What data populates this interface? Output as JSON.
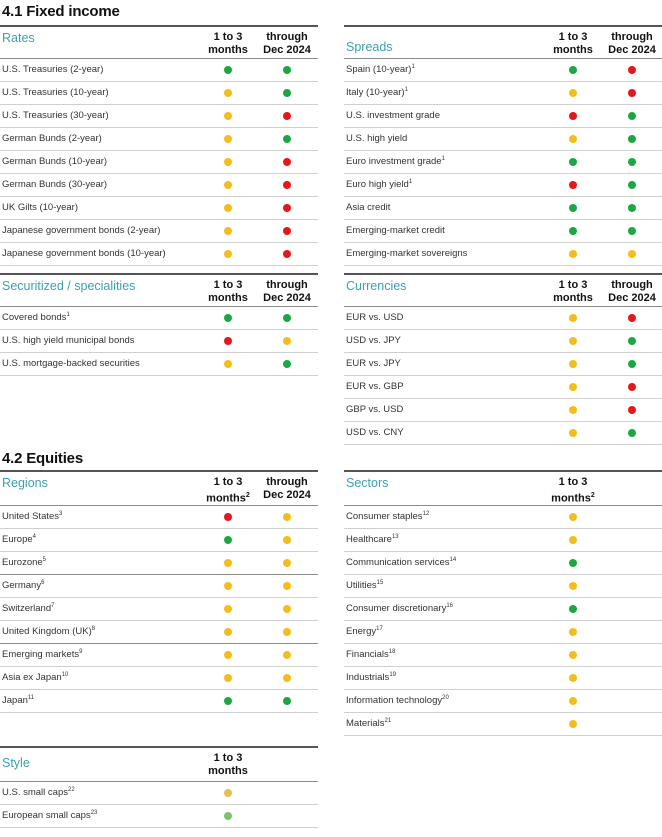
{
  "colors": {
    "green": "#1aa843",
    "yellow": "#f4bc1c",
    "red": "#e6161b",
    "accent": "#3aa1b2",
    "muted_yellow": "#e3c050",
    "muted_green": "#7bc46a"
  },
  "headers": {
    "h1": "1 to 3",
    "h1b": "months",
    "h2": "through",
    "h2b": "Dec 2024",
    "sup2": "2"
  },
  "sections": {
    "fixed_income": "4.1 Fixed income",
    "equities": "4.2 Equities"
  },
  "rates": {
    "title": "Rates",
    "rows": [
      {
        "label": "U.S. Treasuries (2-year)",
        "sup": "",
        "c1": "green",
        "c2": "green"
      },
      {
        "label": "U.S. Treasuries (10-year)",
        "sup": "",
        "c1": "yellow",
        "c2": "green"
      },
      {
        "label": "U.S. Treasuries (30-year)",
        "sup": "",
        "c1": "yellow",
        "c2": "red"
      },
      {
        "label": "German Bunds (2-year)",
        "sup": "",
        "c1": "yellow",
        "c2": "green"
      },
      {
        "label": "German Bunds (10-year)",
        "sup": "",
        "c1": "yellow",
        "c2": "red"
      },
      {
        "label": "German Bunds (30-year)",
        "sup": "",
        "c1": "yellow",
        "c2": "red"
      },
      {
        "label": "UK Gilts (10-year)",
        "sup": "",
        "c1": "yellow",
        "c2": "red"
      },
      {
        "label": "Japanese government bonds (2-year)",
        "sup": "",
        "c1": "yellow",
        "c2": "red"
      },
      {
        "label": "Japanese government bonds (10-year)",
        "sup": "",
        "c1": "yellow",
        "c2": "red"
      }
    ]
  },
  "spreads": {
    "title": "Spreads",
    "rows": [
      {
        "label": "Spain (10-year)",
        "sup": "1",
        "c1": "green",
        "c2": "red"
      },
      {
        "label": "Italy (10-year)",
        "sup": "1",
        "c1": "yellow",
        "c2": "red"
      },
      {
        "label": "U.S. investment grade",
        "sup": "",
        "c1": "red",
        "c2": "green"
      },
      {
        "label": "U.S. high yield",
        "sup": "",
        "c1": "yellow",
        "c2": "green"
      },
      {
        "label": "Euro investment grade",
        "sup": "1",
        "c1": "green",
        "c2": "green"
      },
      {
        "label": "Euro high yield",
        "sup": "1",
        "c1": "red",
        "c2": "green"
      },
      {
        "label": "Asia credit",
        "sup": "",
        "c1": "green",
        "c2": "green"
      },
      {
        "label": "Emerging-market credit",
        "sup": "",
        "c1": "green",
        "c2": "green"
      },
      {
        "label": "Emerging-market sovereigns",
        "sup": "",
        "c1": "yellow",
        "c2": "yellow"
      }
    ]
  },
  "securitized": {
    "title": "Securitized / specialities",
    "rows": [
      {
        "label": "Covered bonds",
        "sup": "1",
        "c1": "green",
        "c2": "green"
      },
      {
        "label": "U.S. high yield municipal bonds",
        "sup": "",
        "c1": "red",
        "c2": "yellow"
      },
      {
        "label": "U.S. mortgage-backed securities",
        "sup": "",
        "c1": "yellow",
        "c2": "green"
      }
    ]
  },
  "currencies": {
    "title": "Currencies",
    "rows": [
      {
        "label": "EUR vs. USD",
        "sup": "",
        "c1": "yellow",
        "c2": "red"
      },
      {
        "label": "USD vs. JPY",
        "sup": "",
        "c1": "yellow",
        "c2": "green"
      },
      {
        "label": "EUR vs. JPY",
        "sup": "",
        "c1": "yellow",
        "c2": "green"
      },
      {
        "label": "EUR vs. GBP",
        "sup": "",
        "c1": "yellow",
        "c2": "red"
      },
      {
        "label": "GBP vs. USD",
        "sup": "",
        "c1": "yellow",
        "c2": "red"
      },
      {
        "label": "USD vs. CNY",
        "sup": "",
        "c1": "yellow",
        "c2": "green"
      }
    ]
  },
  "regions": {
    "title": "Regions",
    "rows": [
      {
        "label": "United States",
        "sup": "3",
        "c1": "red",
        "c2": "yellow"
      },
      {
        "label": "Europe",
        "sup": "4",
        "c1": "green",
        "c2": "yellow"
      },
      {
        "label": "Eurozone",
        "sup": "5",
        "c1": "yellow",
        "c2": "yellow"
      },
      {
        "label": "Germany",
        "sup": "6",
        "c1": "yellow",
        "c2": "yellow"
      },
      {
        "label": "Switzerland",
        "sup": "7",
        "c1": "yellow",
        "c2": "yellow"
      },
      {
        "label": "United Kingdom (UK)",
        "sup": "8",
        "c1": "yellow",
        "c2": "yellow"
      },
      {
        "label": "Emerging markets",
        "sup": "9",
        "c1": "yellow",
        "c2": "yellow"
      },
      {
        "label": "Asia ex Japan",
        "sup": "10",
        "c1": "yellow",
        "c2": "yellow"
      },
      {
        "label": "Japan",
        "sup": "11",
        "c1": "green",
        "c2": "green"
      }
    ]
  },
  "sectors": {
    "title": "Sectors",
    "rows": [
      {
        "label": "Consumer staples",
        "sup": "12",
        "c1": "yellow"
      },
      {
        "label": "Healthcare",
        "sup": "13",
        "c1": "yellow"
      },
      {
        "label": "Communication services",
        "sup": "14",
        "c1": "green"
      },
      {
        "label": "Utilities",
        "sup": "15",
        "c1": "yellow"
      },
      {
        "label": "Consumer discretionary",
        "sup": "16",
        "c1": "green"
      },
      {
        "label": "Energy",
        "sup": "17",
        "c1": "yellow"
      },
      {
        "label": "Financials",
        "sup": "18",
        "c1": "yellow"
      },
      {
        "label": "Industrials",
        "sup": "19",
        "c1": "yellow"
      },
      {
        "label": "Information technology",
        "sup": "20",
        "c1": "yellow"
      },
      {
        "label": "Materials",
        "sup": "21",
        "c1": "yellow"
      }
    ]
  },
  "style": {
    "title": "Style",
    "rows": [
      {
        "label": "U.S. small caps",
        "sup": "22",
        "c1": "muted_yellow"
      },
      {
        "label": "European small caps",
        "sup": "23",
        "c1": "muted_green"
      }
    ]
  }
}
